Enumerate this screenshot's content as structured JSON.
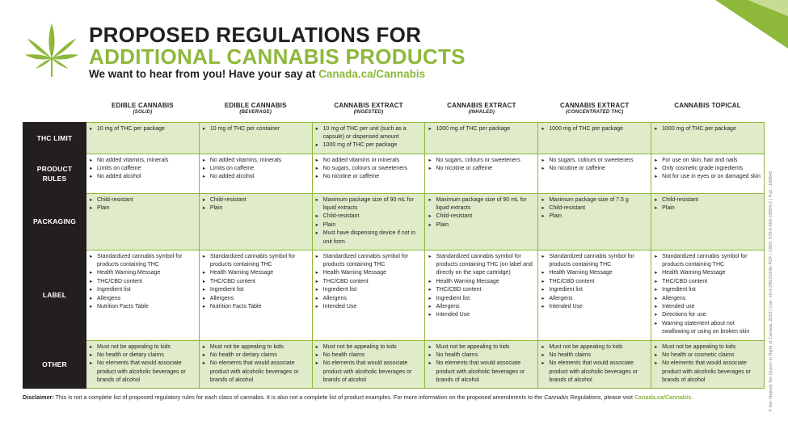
{
  "header": {
    "title_line1": "PROPOSED REGULATIONS FOR",
    "title_line2": "ADDITIONAL CANNABIS PRODUCTS",
    "subtitle_text": "We want to hear from you! Have your say at ",
    "subtitle_link": "Canada.ca/Cannabis"
  },
  "columns": [
    {
      "name": "EDIBLE CANNABIS",
      "sub": "(SOLID)"
    },
    {
      "name": "EDIBLE CANNABIS",
      "sub": "(BEVERAGE)"
    },
    {
      "name": "CANNABIS EXTRACT",
      "sub": "(INGESTED)"
    },
    {
      "name": "CANNABIS EXTRACT",
      "sub": "(INHALED)"
    },
    {
      "name": "CANNABIS EXTRACT",
      "sub": "(CONCENTRATED THC)"
    },
    {
      "name": "CANNABIS TOPICAL",
      "sub": ""
    }
  ],
  "rows": {
    "thc": {
      "label1": "THC LIMIT",
      "label2": "",
      "cells": [
        [
          "10 mg of THC per package"
        ],
        [
          "10 mg of THC per container"
        ],
        [
          "10 mg of THC per unit (such as a capsule) or dispensed amount",
          "1000 mg of THC per package"
        ],
        [
          "1000 mg of THC per package"
        ],
        [
          "1000 mg of THC per package"
        ],
        [
          "1000 mg of THC per package"
        ]
      ]
    },
    "product": {
      "label1": "PRODUCT",
      "label2": "RULES",
      "cells": [
        [
          "No added vitamins, minerals",
          "Limits on caffeine",
          "No added alcohol"
        ],
        [
          "No added vitamins, minerals",
          "Limits on caffeine",
          "No added alcohol"
        ],
        [
          "No added vitamins or minerals",
          "No sugars, colours or sweeteners",
          "No nicotine or caffeine"
        ],
        [
          "No sugars, colours or sweeteners",
          "No nicotine or caffeine"
        ],
        [
          "No sugars, colours or sweeteners",
          "No nicotine or caffeine"
        ],
        [
          "For use on skin, hair and nails",
          "Only cosmetic grade ingredients",
          "Not for use in eyes or on damaged skin"
        ]
      ]
    },
    "packaging": {
      "label1": "PACKAGING",
      "label2": "",
      "cells": [
        [
          "Child-resistant",
          "Plain"
        ],
        [
          "Child-resistant",
          "Plain"
        ],
        [
          "Maximum package size of 90 mL for liquid extracts",
          "Child-resistant",
          "Plain",
          "Must have dispensing device if not in unit form"
        ],
        [
          "Maximum package size of 90 mL for liquid extracts",
          "Child-resistant",
          "Plain"
        ],
        [
          "Maximum package size of 7.5 g",
          "Child-resistant",
          "Plain"
        ],
        [
          "Child-resistant",
          "Plain"
        ]
      ]
    },
    "label": {
      "label1": "LABEL",
      "label2": "",
      "cells": [
        [
          "Standardized cannabis symbol for products containing THC",
          "Health Warning Message",
          "THC/CBD content",
          "Ingredient list",
          "Allergens",
          "Nutrition Facts Table"
        ],
        [
          "Standardized cannabis symbol for products containing THC",
          "Health Warning Message",
          "THC/CBD content",
          "Ingredient list",
          "Allergens",
          "Nutrition Facts Table"
        ],
        [
          "Standardized cannabis symbol for products containing THC",
          "Health Warning Message",
          "THC/CBD content",
          "Ingredient list",
          "Allergens",
          "Intended Use"
        ],
        [
          "Standardized cannabis symbol for products containing THC (on label and directly on the vape cartridge)",
          "Health Warning Message",
          "THC/CBD content",
          "Ingredient list",
          "Allergens",
          "Intended Use"
        ],
        [
          "Standardized cannabis symbol for products containing THC",
          "Health Warning Message",
          "THC/CBD content",
          "Ingredient list",
          "Allergens",
          "Intended Use"
        ],
        [
          "Standardized cannabis symbol for products containing THC",
          "Health Warning Message",
          "THC/CBD content",
          "Ingredient list",
          "Allergens",
          "Intended use",
          "Directions for use",
          "Warning statement about not swallowing or using on broken skin"
        ]
      ]
    },
    "other": {
      "label1": "OTHER",
      "label2": "",
      "cells": [
        [
          "Must not be appealing to kids",
          "No health or dietary claims",
          "No elements that would associate product with alcoholic beverages or brands of alcohol"
        ],
        [
          "Must not be appealing to kids",
          "No health or dietary claims",
          "No elements that would associate product with alcoholic beverages or brands of alcohol"
        ],
        [
          "Must not be appealing to kids",
          "No health claims",
          "No elements that would associate product with alcoholic beverages or brands of alcohol"
        ],
        [
          "Must not be appealing to kids",
          "No health claims",
          "No elements that would associate product with alcoholic beverages or brands of alcohol"
        ],
        [
          "Must not be appealing to kids",
          "No health claims",
          "No elements that would associate product with alcoholic beverages or brands of alcohol"
        ],
        [
          "Must not be appealing to kids",
          "No health or cosmetic claims",
          "No elements that would associate product with alcoholic beverages or brands of alcohol"
        ]
      ]
    }
  },
  "disclaimer": {
    "label": "Disclaimer:",
    "text": " This is not a complete list of proposed regulatory rules for each class of cannabis. It is also not a complete list of product examples. For more information on the proposed amendments to the ",
    "italic": "Cannabis Regulations",
    "text2": ", please visit ",
    "link": "Canada.ca/Cannabis",
    "end": "."
  },
  "side_text": "© Her Majesty the Queen in Right of Canada, 2018  |  Cat.: H14-296/2018E-PDF  |  ISBN: 978-0-660-28864-2  |  Pub.: 180642",
  "colors": {
    "accent": "#8db83a",
    "shade": "#dfebc9",
    "dark": "#231f20"
  },
  "icons": {
    "leaf": "cannabis-leaf-icon",
    "corner": "corner-triangle-decoration"
  }
}
